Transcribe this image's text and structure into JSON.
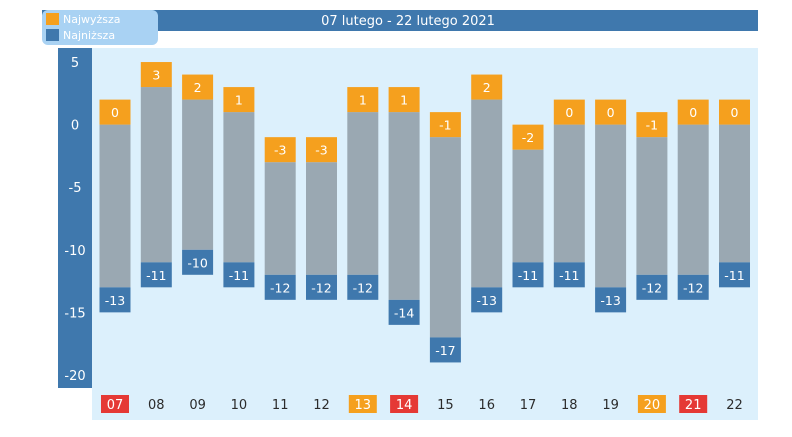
{
  "chart_data": {
    "type": "bar",
    "title": "07 lutego - 22 lutego 2021",
    "legend": [
      {
        "name": "Najwyższa",
        "color": "#f5a01e"
      },
      {
        "name": "Najniższa",
        "color": "#3f78ad"
      }
    ],
    "categories": [
      "07",
      "08",
      "09",
      "10",
      "11",
      "12",
      "13",
      "14",
      "15",
      "16",
      "17",
      "18",
      "19",
      "20",
      "21",
      "22"
    ],
    "highlight": {
      "07": "#e53935",
      "13": "#f5a01e",
      "14": "#e53935",
      "20": "#f5a01e",
      "21": "#e53935"
    },
    "series": [
      {
        "name": "Najwyższa",
        "values": [
          0,
          3,
          2,
          1,
          -3,
          -3,
          1,
          1,
          -1,
          2,
          -2,
          0,
          0,
          -1,
          0,
          0
        ]
      },
      {
        "name": "Najniższa",
        "values": [
          -13,
          -11,
          -10,
          -11,
          -12,
          -12,
          -12,
          -14,
          -17,
          -13,
          -11,
          -11,
          -13,
          -12,
          -12,
          -11
        ]
      }
    ],
    "yticks": [
      "5",
      "0",
      "-5",
      "-10",
      "-15",
      "-20"
    ],
    "ylim": [
      -20,
      5
    ],
    "colors": {
      "frame": "#3f78ad",
      "plot_bg": "#dcf0fc",
      "bar": "#9aa8b2",
      "high": "#f5a01e",
      "low": "#3f78ad",
      "legend_bg": "#a9d2f3"
    }
  }
}
